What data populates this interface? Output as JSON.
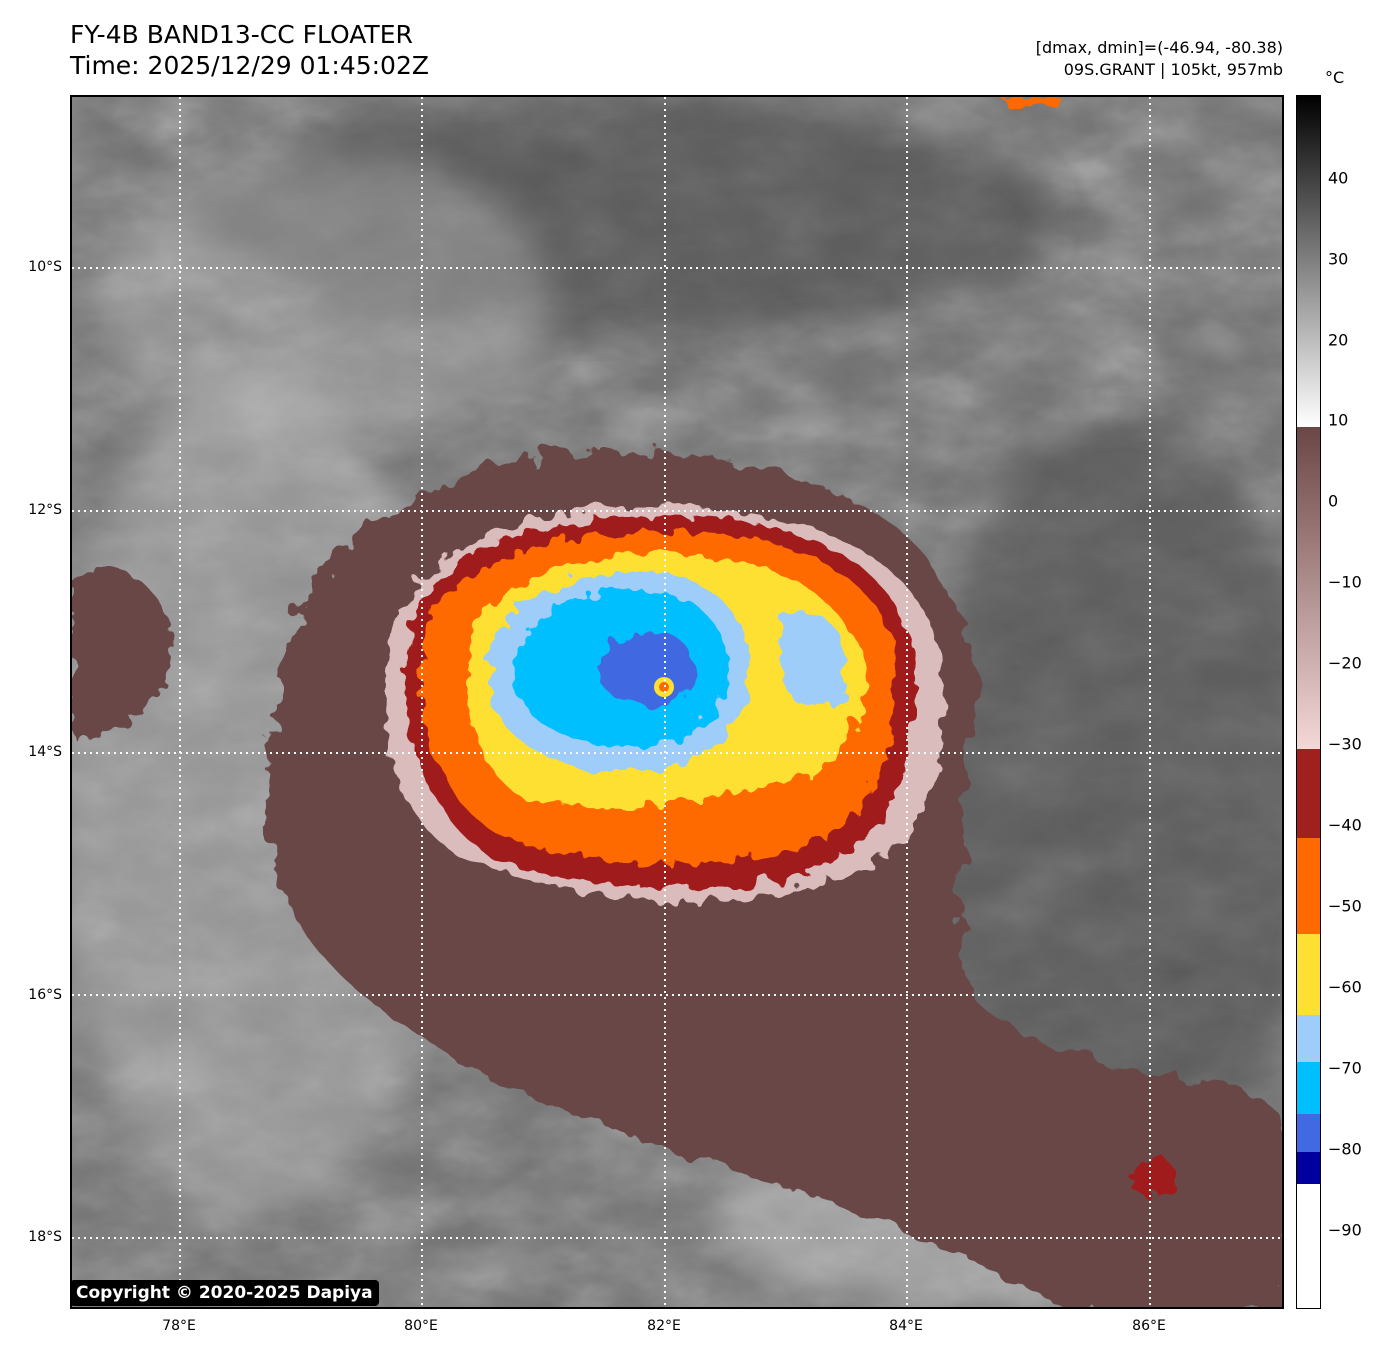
{
  "header": {
    "title": "FY-4B BAND13-CC FLOATER",
    "time": "Time: 2025/12/29 01:45:02Z",
    "dminmax": "[dmax, dmin]=(-46.94, -80.38)",
    "storm": "09S.GRANT | 105kt, 957mb"
  },
  "colorbar": {
    "unit": "°C",
    "ticks": [
      "40",
      "30",
      "20",
      "10",
      "0",
      "−10",
      "−20",
      "−30",
      "−40",
      "−50",
      "−60",
      "−70",
      "−80",
      "−90"
    ],
    "range": [
      -100,
      50
    ],
    "colors": {
      "warm": "#000000",
      "mid_gray": "#808080",
      "white": "#ffffff",
      "brown": "#6b4646",
      "pink": "#f4d7d7",
      "dark_red": "#a01f1f",
      "orange": "#ff6a00",
      "yellow": "#fde031",
      "light_blue": "#9ecdfa",
      "cyan": "#00bfff",
      "royal_blue": "#4169e1",
      "navy": "#00009e"
    }
  },
  "map": {
    "lat_labels": [
      "10°S",
      "12°S",
      "14°S",
      "16°S",
      "18°S"
    ],
    "lon_labels": [
      "78°E",
      "80°E",
      "82°E",
      "84°E",
      "86°E"
    ],
    "extent": {
      "lon": [
        77.1,
        87.1
      ],
      "lat": [
        -18.5,
        -8.5
      ]
    },
    "storm_center": {
      "lon": 82.0,
      "lat": -13.45
    }
  },
  "copyright": "Copyright © 2020-2025 Dapiya"
}
